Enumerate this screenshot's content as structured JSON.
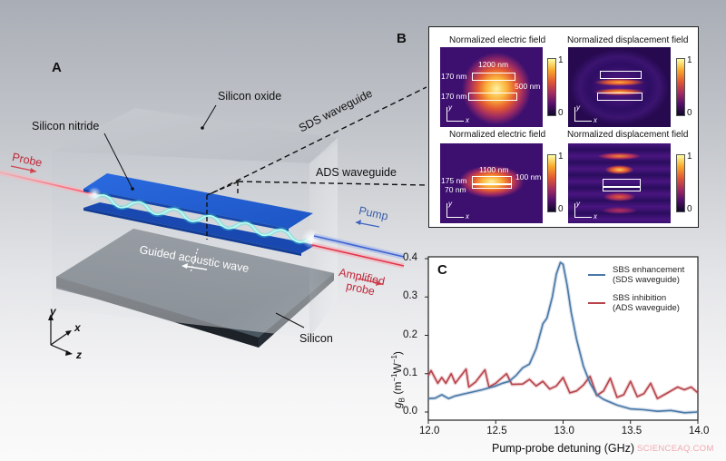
{
  "panelA": {
    "letter": "A",
    "labels": {
      "silicon_oxide": "Silicon oxide",
      "silicon_nitride": "Silicon nitride",
      "sds_waveguide": "SDS waveguide",
      "ads_waveguide": "ADS waveguide",
      "probe": "Probe",
      "pump": "Pump",
      "amplified_probe_1": "Amplified",
      "amplified_probe_2": "probe",
      "guided_acoustic_wave": "Guided acoustic wave",
      "silicon": "Silicon"
    },
    "axes": {
      "y": "y",
      "x": "x",
      "z": "z"
    },
    "colors": {
      "probe": "#e0344a",
      "pump": "#4a6fd0",
      "nitride": "#1f5fd6",
      "acoustic": "#6ff5e8",
      "silicon": "#2f3840"
    }
  },
  "panelB": {
    "letter": "B",
    "rows": [
      {
        "left_title": "Normalized electric field",
        "right_title": "Normalized displacement field",
        "dims": {
          "width": "1200 nm",
          "top": "170 nm",
          "bottom": "170 nm",
          "gap": "500 nm"
        },
        "colorbar_max": "1",
        "colorbar_min": "0"
      },
      {
        "left_title": "Normalized electric field",
        "right_title": "Normalized displacement field",
        "dims": {
          "width": "1100 nm",
          "top": "175 nm",
          "bottom": "70 nm",
          "gap": "100 nm"
        },
        "colorbar_max": "1",
        "colorbar_min": "0"
      }
    ],
    "axis_y": "y",
    "axis_x": "x"
  },
  "chart_data": {
    "type": "line",
    "panel_letter": "C",
    "title": "",
    "xlabel": "Pump-probe detuning (GHz)",
    "ylabel": "g_B (m^-1 W^-1)",
    "xlim": [
      12.0,
      14.0
    ],
    "ylim": [
      -0.015,
      0.41
    ],
    "xticks": [
      "12.0",
      "12.5",
      "13.0",
      "13.5",
      "14.0"
    ],
    "yticks": [
      "0.0",
      "0.1",
      "0.2",
      "0.3",
      "0.4"
    ],
    "grid": false,
    "legend_position": "upper right",
    "series": [
      {
        "name": "SBS enhancement (SDS waveguide)",
        "color": "#4a78a8",
        "x": [
          12.0,
          12.05,
          12.1,
          12.15,
          12.2,
          12.3,
          12.4,
          12.5,
          12.55,
          12.6,
          12.65,
          12.7,
          12.75,
          12.8,
          12.85,
          12.88,
          12.92,
          12.95,
          12.98,
          13.0,
          13.03,
          13.06,
          13.1,
          13.15,
          13.2,
          13.25,
          13.3,
          13.4,
          13.5,
          13.6,
          13.7,
          13.8,
          13.9,
          14.0
        ],
        "y": [
          0.035,
          0.036,
          0.045,
          0.035,
          0.042,
          0.05,
          0.058,
          0.068,
          0.075,
          0.08,
          0.095,
          0.115,
          0.125,
          0.165,
          0.23,
          0.245,
          0.3,
          0.36,
          0.39,
          0.385,
          0.33,
          0.26,
          0.19,
          0.12,
          0.075,
          0.045,
          0.033,
          0.018,
          0.008,
          0.006,
          0.002,
          0.004,
          -0.002,
          0.0
        ]
      },
      {
        "name": "SBS inhibition (ADS waveguide)",
        "color": "#b8434a",
        "x": [
          12.0,
          12.02,
          12.07,
          12.1,
          12.13,
          12.17,
          12.2,
          12.28,
          12.3,
          12.35,
          12.42,
          12.45,
          12.5,
          12.58,
          12.62,
          12.7,
          12.75,
          12.8,
          12.85,
          12.9,
          12.95,
          13.0,
          13.05,
          13.1,
          13.15,
          13.2,
          13.25,
          13.3,
          13.35,
          13.4,
          13.45,
          13.5,
          13.55,
          13.6,
          13.65,
          13.7,
          13.75,
          13.8,
          13.85,
          13.9,
          13.95,
          14.0
        ],
        "y": [
          0.095,
          0.108,
          0.075,
          0.09,
          0.075,
          0.1,
          0.075,
          0.112,
          0.065,
          0.078,
          0.11,
          0.065,
          0.075,
          0.1,
          0.072,
          0.073,
          0.085,
          0.068,
          0.08,
          0.06,
          0.068,
          0.09,
          0.05,
          0.055,
          0.07,
          0.093,
          0.043,
          0.055,
          0.088,
          0.038,
          0.045,
          0.08,
          0.04,
          0.048,
          0.075,
          0.035,
          0.045,
          0.055,
          0.065,
          0.058,
          0.065,
          0.05
        ]
      }
    ]
  },
  "watermark": "SCIENCEAQ.COM"
}
